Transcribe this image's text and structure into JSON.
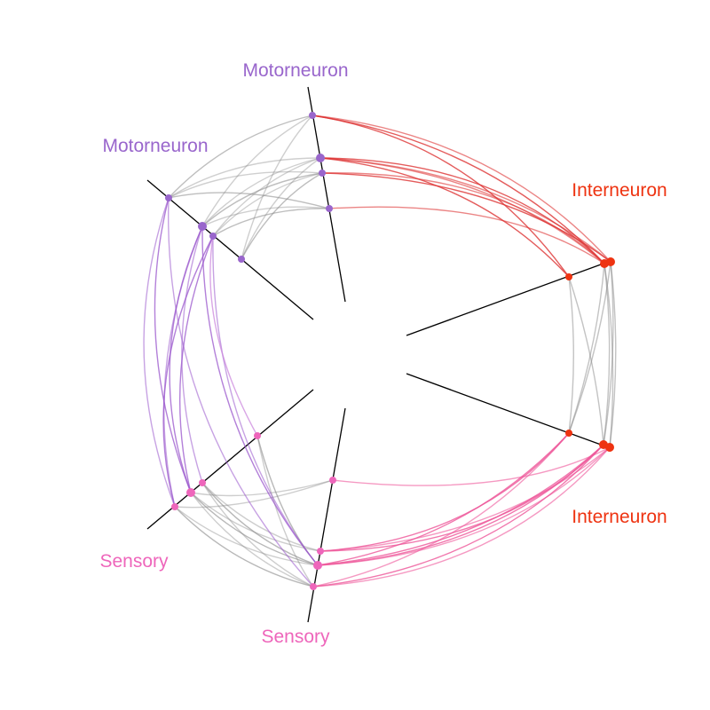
{
  "colors": {
    "motorneuron": "#9966cc",
    "interneuron": "#ee3311",
    "sensory": "#ee66bb",
    "axis": "#000000",
    "edge_intra": "#888888",
    "edge_red": "#dd3333",
    "edge_pink": "#ee5599",
    "edge_purple": "#9955cc"
  },
  "axis_labels": [
    {
      "id": "motor-a",
      "text": "Motorneuron",
      "group": "motorneuron"
    },
    {
      "id": "motor-b",
      "text": "Motorneuron",
      "group": "motorneuron"
    },
    {
      "id": "inter-a",
      "text": "Interneuron",
      "group": "interneuron"
    },
    {
      "id": "inter-b",
      "text": "Interneuron",
      "group": "interneuron"
    },
    {
      "id": "sensory-a",
      "text": "Sensory",
      "group": "sensory"
    },
    {
      "id": "sensory-b",
      "text": "Sensory",
      "group": "sensory"
    }
  ]
}
